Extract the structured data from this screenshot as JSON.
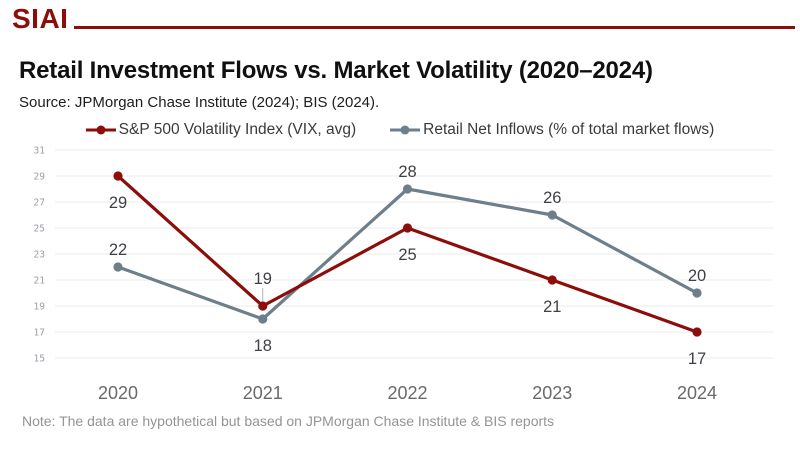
{
  "brand": {
    "logo_text": "SIAI",
    "accent_color": "#8B0E0B"
  },
  "header": {
    "title": "Retail Investment Flows vs. Market Volatility (2020–2024)",
    "source": "Source: JPMorgan Chase Institute (2024); BIS (2024)."
  },
  "note": "Note: The data are hypothetical but based on JPMorgan Chase Institute & BIS reports",
  "chart_data": {
    "type": "line",
    "title": "Retail Investment Flows vs. Market Volatility (2020–2024)",
    "categories": [
      "2020",
      "2021",
      "2022",
      "2023",
      "2024"
    ],
    "series": [
      {
        "name": "S&P 500 Volatility Index (VIX, avg)",
        "color": "#8B0E0B",
        "values": [
          29,
          19,
          25,
          21,
          17
        ],
        "label_side": [
          "below",
          "above",
          "below",
          "below",
          "below"
        ],
        "label_leader": [
          false,
          true,
          false,
          false,
          false
        ]
      },
      {
        "name": "Retail Net Inflows (% of total market flows)",
        "color": "#6D7F8B",
        "values": [
          22,
          18,
          28,
          26,
          20
        ],
        "label_side": [
          "above",
          "below",
          "above",
          "above",
          "above"
        ],
        "label_leader": [
          false,
          false,
          false,
          false,
          false
        ]
      }
    ],
    "xlabel": "",
    "ylabel": "",
    "ylim": [
      15,
      31
    ],
    "yticks": [
      15,
      17,
      19,
      21,
      23,
      25,
      27,
      29,
      31
    ],
    "grid": true,
    "legend_position": "top",
    "colors": {
      "gridline": "#ebebf2",
      "tick_label": "#9ba1a8",
      "year_label": "#69696b",
      "data_label": "#3f4043",
      "leader_line": "#b5b5b5"
    }
  }
}
